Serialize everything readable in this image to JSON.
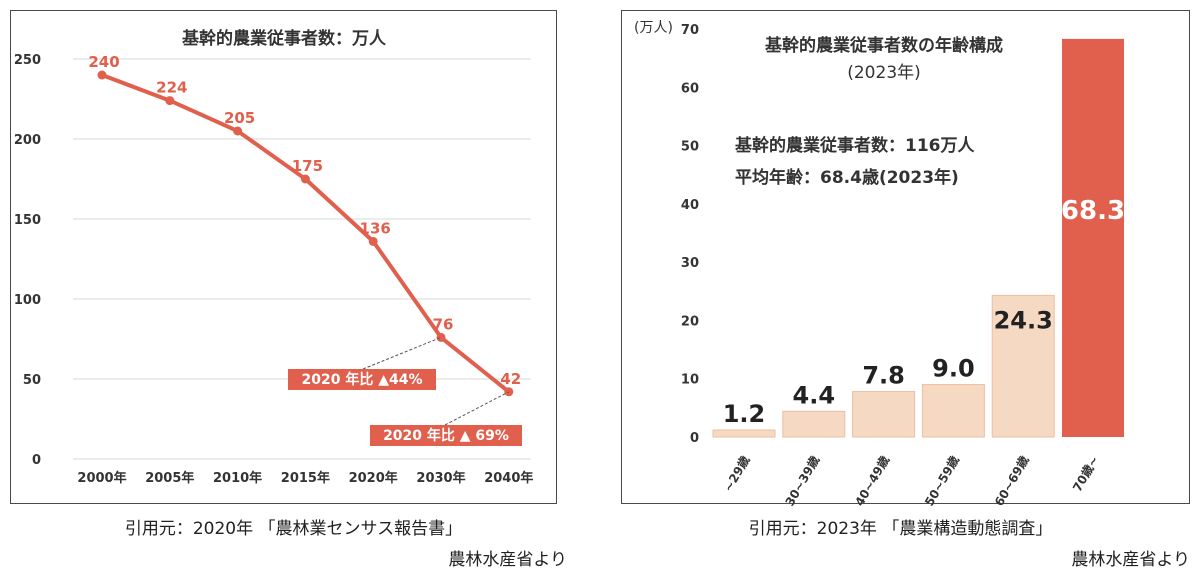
{
  "chart_data": [
    {
      "type": "line",
      "title": "基幹的農業従事者数：万人",
      "xlabel": "",
      "ylabel": "",
      "categories": [
        "2000年",
        "2005年",
        "2010年",
        "2015年",
        "2020年",
        "2030年",
        "2040年"
      ],
      "values": [
        240,
        224,
        205,
        175,
        136,
        76,
        42
      ],
      "data_labels": [
        "240",
        "224",
        "205",
        "175",
        "136",
        "76",
        "42"
      ],
      "ylim": [
        0,
        250
      ],
      "yticks": [
        0,
        50,
        100,
        150,
        200,
        250
      ],
      "grid": true,
      "line_color": "#e0604d",
      "annotations": [
        {
          "text": "2020 年比 ▲44%",
          "target": "2030年"
        },
        {
          "text": "2020 年比 ▲ 69%",
          "target": "2040年"
        }
      ]
    },
    {
      "type": "bar",
      "title": "基幹的農業従事者数の年齢構成",
      "subtitle": "(2023年)",
      "unit_label": "(万人)",
      "categories": [
        "~29歳",
        "30~39歳",
        "40~49歳",
        "50~59歳",
        "60~69歳",
        "70歳~"
      ],
      "values": [
        1.2,
        4.4,
        7.8,
        9.0,
        24.3,
        68.3
      ],
      "data_labels": [
        "1.2",
        "4.4",
        "7.8",
        "9.0",
        "24.3",
        "68.3"
      ],
      "ylim": [
        0,
        70
      ],
      "yticks": [
        0,
        10,
        20,
        30,
        40,
        50,
        60,
        70
      ],
      "bar_colors": [
        "#f5d9c3",
        "#f5d9c3",
        "#f5d9c3",
        "#f5d9c3",
        "#f5d9c3",
        "#e0604d"
      ],
      "bar_stroke": "#eebfa0",
      "notes": [
        "基幹的農業従事者数：116万人",
        "平均年齢：68.4歳(2023年)"
      ]
    }
  ],
  "sources": {
    "left": [
      "引用元：2020年 「農林業センサス報告書」",
      "農林水産省より"
    ],
    "right": [
      "引用元：2023年 「農業構造動態調査」",
      "農林水産省より"
    ]
  },
  "colors": {
    "accent": "#e0604d",
    "light_bar": "#f5d9c3",
    "grid": "#d9d9d9",
    "text": "#333333"
  }
}
